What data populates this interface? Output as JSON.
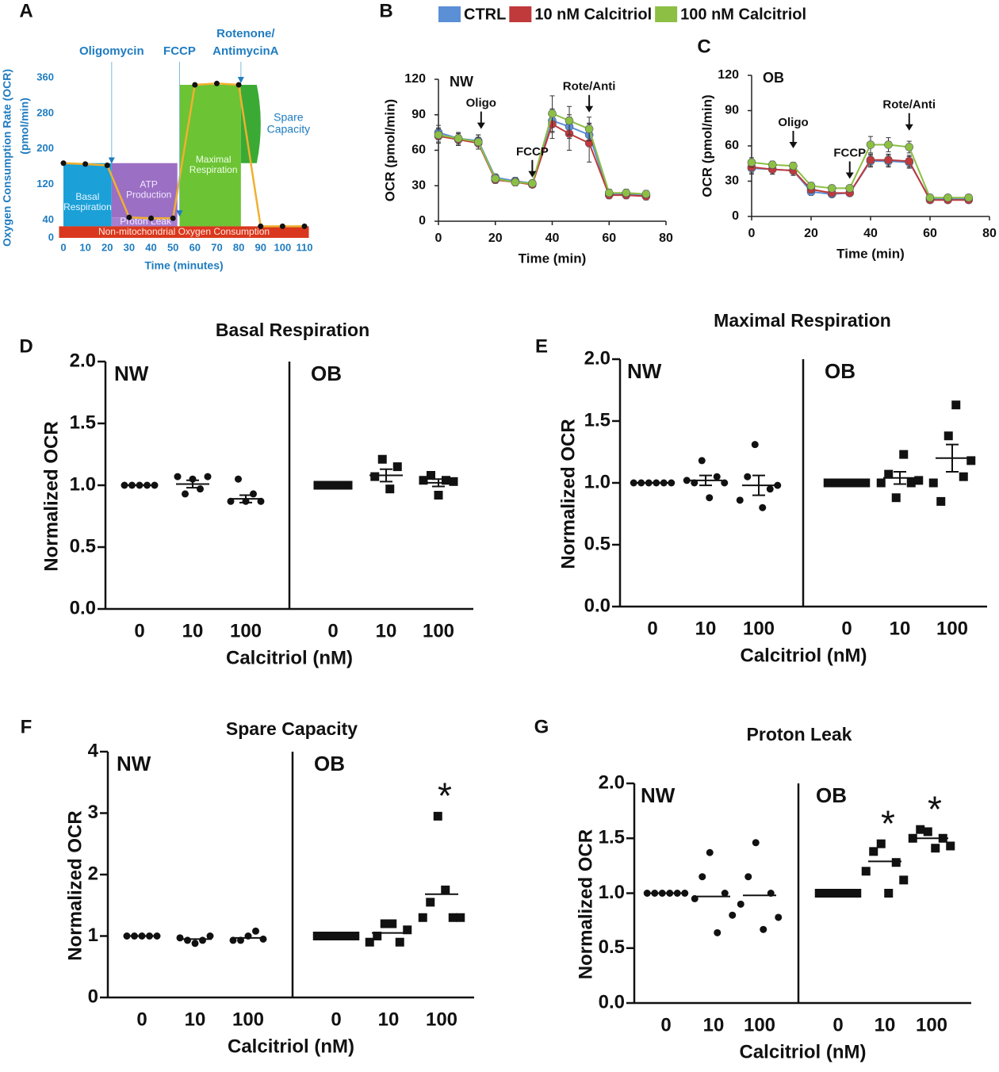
{
  "chart_data": [
    {
      "type": "schematic",
      "panel": "A",
      "ylabel": [
        "Oxygen Consumption Rate (OCR)",
        "(pmol/min)"
      ],
      "xlabel": "Time (minutes)",
      "x": [
        0,
        10,
        20,
        30,
        40,
        50,
        60,
        70,
        80,
        90,
        100,
        110
      ],
      "values": [
        168,
        166,
        163,
        46,
        44,
        44,
        344,
        347,
        344,
        26,
        26,
        26
      ],
      "xlim": [
        0,
        110
      ],
      "ylim": [
        0,
        360
      ],
      "xticks": [
        0,
        10,
        20,
        30,
        40,
        50,
        60,
        70,
        80,
        90,
        100,
        110
      ],
      "yticks": [
        0,
        40,
        120,
        200,
        280,
        360
      ],
      "injections": [
        {
          "text": [
            "Oligomycin"
          ],
          "x": 22
        },
        {
          "text": [
            "FCCP"
          ],
          "x": 53
        },
        {
          "text": [
            "Rotenone/",
            "AntimycinA"
          ],
          "x": 81
        }
      ],
      "regions": {
        "basal": [
          "Basal",
          "Respiration"
        ],
        "atp": [
          "ATP",
          "Production"
        ],
        "leak": [
          "Proton Leak"
        ],
        "maximal": [
          "Maximal",
          "Respiration"
        ],
        "spare": [
          "Spare",
          "Capacity"
        ],
        "nonmito": [
          "Non-mitochondrial Oxygen Consumption"
        ]
      }
    },
    {
      "type": "line",
      "panel": "B",
      "label": "NW",
      "ylabel": "OCR (pmol/min)",
      "xlabel": "Time (min)",
      "legend": "top",
      "x": [
        0,
        7,
        14,
        20,
        27,
        33,
        40,
        46,
        53,
        60,
        66,
        73
      ],
      "xlim": [
        0,
        80
      ],
      "ylim": [
        0,
        120
      ],
      "xticks": [
        0,
        20,
        40,
        60,
        80
      ],
      "yticks": [
        0,
        30,
        60,
        90,
        120
      ],
      "series": [
        {
          "name": "CTRL",
          "color": "#5b8fd6",
          "values": [
            75,
            70,
            68,
            37,
            34,
            32,
            85,
            80,
            73,
            23,
            23,
            22
          ],
          "errors": [
            6,
            5,
            5,
            3,
            3,
            2,
            10,
            10,
            10,
            3,
            3,
            3
          ]
        },
        {
          "name": "10 nM Calcitriol",
          "color": "#c0393b",
          "values": [
            72,
            69,
            66,
            35,
            33,
            31,
            82,
            74,
            66,
            22,
            22,
            21
          ],
          "errors": [
            6,
            5,
            5,
            3,
            3,
            2,
            12,
            14,
            16,
            3,
            3,
            3
          ]
        },
        {
          "name": "100 nM Calcitriol",
          "color": "#8cbf44",
          "values": [
            73,
            70,
            67,
            36,
            33,
            32,
            91,
            85,
            78,
            24,
            24,
            23
          ],
          "errors": [
            6,
            5,
            6,
            3,
            3,
            2,
            15,
            12,
            10,
            3,
            3,
            3
          ]
        }
      ],
      "annotations": [
        {
          "text": "Oligo",
          "x": 15,
          "y": 78
        },
        {
          "text": "FCCP",
          "x": 33,
          "y": 37
        },
        {
          "text": "Rote/Anti",
          "x": 53,
          "y": 92
        }
      ]
    },
    {
      "type": "line",
      "panel": "C",
      "label": "OB",
      "ylabel": "OCR (pmol/min)",
      "xlabel": "Time (min)",
      "x": [
        0,
        7,
        14,
        20,
        27,
        33,
        40,
        46,
        53,
        60,
        66,
        73
      ],
      "xlim": [
        0,
        80
      ],
      "ylim": [
        0,
        120
      ],
      "xticks": [
        0,
        20,
        40,
        60,
        80
      ],
      "yticks": [
        0,
        30,
        60,
        90,
        120
      ],
      "series": [
        {
          "color": "#5b8fd6",
          "values": [
            41,
            40,
            39,
            21,
            19,
            20,
            47,
            47,
            46,
            15,
            15,
            15
          ],
          "errors": [
            5,
            4,
            4,
            3,
            2,
            2,
            5,
            5,
            5,
            2,
            2,
            2
          ]
        },
        {
          "color": "#c0393b",
          "values": [
            42,
            40,
            39,
            23,
            20,
            20,
            48,
            48,
            47,
            14,
            14,
            14
          ],
          "errors": [
            5,
            4,
            4,
            3,
            2,
            2,
            5,
            5,
            5,
            2,
            2,
            2
          ]
        },
        {
          "color": "#8cbf44",
          "values": [
            46,
            44,
            43,
            26,
            24,
            24,
            61,
            61,
            59,
            16,
            16,
            16
          ],
          "errors": [
            4,
            3,
            3,
            3,
            2,
            2,
            7,
            6,
            5,
            2,
            2,
            2
          ]
        }
      ],
      "annotations": [
        {
          "text": "Oligo",
          "x": 14,
          "y": 58
        },
        {
          "text": "FCCP",
          "x": 33,
          "y": 32
        },
        {
          "text": "Rote/Anti",
          "x": 53,
          "y": 73
        }
      ]
    },
    {
      "type": "dotplot",
      "panel": "D",
      "title": "Basal Respiration",
      "ylabel": "Normalized OCR",
      "xlabel": "Calcitriol (nM)",
      "ylim": [
        0,
        2
      ],
      "yticks": [
        {
          "value": 0,
          "label": "0.0"
        },
        {
          "value": 0.5,
          "label": "0.5"
        },
        {
          "value": 1,
          "label": "1.0"
        },
        {
          "value": 1.5,
          "label": "1.5"
        },
        {
          "value": 2,
          "label": "2.0"
        }
      ],
      "groups": [
        {
          "name": "NW",
          "marker": "circle",
          "categories": [
            "0",
            "10",
            "100"
          ],
          "points": [
            [
              1,
              1,
              1,
              1,
              1
            ],
            [
              1.07,
              0.93,
              1.05,
              0.97,
              1.07
            ],
            [
              0.87,
              1.05,
              0.87,
              0.93,
              0.87
            ]
          ],
          "means": [
            1,
            1.01,
            0.89
          ],
          "sem": [
            0,
            0.03,
            0.03
          ]
        },
        {
          "name": "OB",
          "marker": "square",
          "categories": [
            "0",
            "10",
            "100"
          ],
          "points": [
            [
              1,
              1,
              1,
              1,
              1
            ],
            [
              1.07,
              1.21,
              0.97,
              1.15
            ],
            [
              1.04,
              1.08,
              0.92,
              1.04,
              1.03
            ]
          ],
          "means": [
            1,
            1.08,
            1.02
          ],
          "sem": [
            0,
            0.05,
            0.03
          ]
        }
      ]
    },
    {
      "type": "dotplot",
      "panel": "E",
      "title": "Maximal Respiration",
      "ylabel": "Normalized OCR",
      "xlabel": "Calcitriol (nM)",
      "ylim": [
        0,
        2
      ],
      "yticks": [
        {
          "value": 0,
          "label": "0.0"
        },
        {
          "value": 0.5,
          "label": "0.5"
        },
        {
          "value": 1,
          "label": "1.0"
        },
        {
          "value": 1.5,
          "label": "1.5"
        },
        {
          "value": 2,
          "label": "2.0"
        }
      ],
      "groups": [
        {
          "name": "NW",
          "marker": "circle",
          "categories": [
            "0",
            "10",
            "100"
          ],
          "points": [
            [
              1,
              1,
              1,
              1,
              1,
              1
            ],
            [
              1.02,
              1.0,
              1.18,
              0.88,
              1.05,
              1.0
            ],
            [
              0.86,
              1.05,
              1.31,
              0.8,
              0.95,
              0.98
            ]
          ],
          "means": [
            1,
            1.02,
            0.98
          ],
          "sem": [
            0,
            0.04,
            0.08
          ]
        },
        {
          "name": "OB",
          "marker": "square",
          "categories": [
            "0",
            "10",
            "100"
          ],
          "points": [
            [
              1,
              1,
              1,
              1,
              1,
              1
            ],
            [
              1.0,
              1.07,
              0.88,
              1.23,
              1.0,
              1.02
            ],
            [
              1.0,
              0.85,
              1.38,
              1.63,
              1.05,
              1.18
            ]
          ],
          "means": [
            1,
            1.04,
            1.2
          ],
          "sem": [
            0,
            0.05,
            0.11
          ]
        }
      ]
    },
    {
      "type": "dotplot",
      "panel": "F",
      "title": "Spare Capacity",
      "ylabel": "Normalized OCR",
      "xlabel": "Calcitriol (nM)",
      "ylim": [
        0,
        4
      ],
      "yticks": [
        0,
        1,
        2,
        3,
        4
      ],
      "groups": [
        {
          "name": "NW",
          "marker": "circle",
          "categories": [
            "0",
            "10",
            "100"
          ],
          "points": [
            [
              1,
              1,
              1,
              1,
              1
            ],
            [
              0.97,
              0.93,
              0.88,
              0.93,
              1.0
            ],
            [
              0.93,
              0.93,
              1.0,
              1.08,
              0.95
            ]
          ],
          "means": [
            1,
            0.95,
            0.97
          ]
        },
        {
          "name": "OB",
          "marker": "square",
          "categories": [
            "0",
            "10",
            "100"
          ],
          "points": [
            [
              1,
              1,
              1,
              1,
              1,
              1
            ],
            [
              0.9,
              1.0,
              1.2,
              1.2,
              0.9,
              1.1
            ],
            [
              1.3,
              1.55,
              2.95,
              1.75,
              1.3,
              1.3
            ]
          ],
          "means": [
            1,
            1.05,
            1.68
          ],
          "labels": [
            null,
            null,
            "*"
          ]
        }
      ]
    },
    {
      "type": "dotplot",
      "panel": "G",
      "title": "Proton Leak",
      "ylabel": "Normalized OCR",
      "xlabel": "Calcitriol (nM)",
      "ylim": [
        0,
        2
      ],
      "yticks": [
        {
          "value": 0,
          "label": "0.0"
        },
        {
          "value": 0.5,
          "label": "0.5"
        },
        {
          "value": 1,
          "label": "1.0"
        },
        {
          "value": 1.5,
          "label": "1.5"
        },
        {
          "value": 2,
          "label": "2.0"
        }
      ],
      "groups": [
        {
          "name": "NW",
          "marker": "circle",
          "categories": [
            "0",
            "10",
            "100"
          ],
          "points": [
            [
              1,
              1,
              1,
              1,
              1,
              1
            ],
            [
              0.95,
              1.15,
              1.37,
              0.64,
              1.0,
              0.8
            ],
            [
              0.9,
              1.15,
              1.46,
              0.67,
              1.0,
              0.78
            ]
          ],
          "means": [
            1,
            0.97,
            0.98
          ]
        },
        {
          "name": "OB",
          "marker": "square",
          "categories": [
            "0",
            "10",
            "100"
          ],
          "points": [
            [
              1,
              1,
              1,
              1,
              1,
              1
            ],
            [
              1.2,
              1.38,
              1.45,
              1.0,
              1.28,
              1.12
            ],
            [
              1.5,
              1.58,
              1.56,
              1.41,
              1.5,
              1.43
            ]
          ],
          "means": [
            1,
            1.29,
            1.5
          ],
          "labels": [
            null,
            "*",
            "*"
          ]
        }
      ]
    }
  ]
}
